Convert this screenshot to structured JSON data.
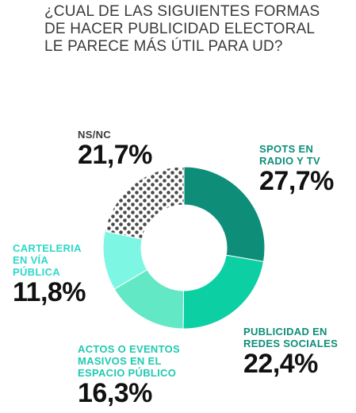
{
  "title_lines": [
    "¿CUAL DE LAS SIGUIENTES FORMAS",
    "DE HACER PUBLICIDAD ELECTORAL",
    "LE PARECE MÁS ÚTIL PARA UD?"
  ],
  "labels": {
    "spots": {
      "lines": [
        "SPOTS EN",
        "RADIO Y TV"
      ],
      "pct": "27,7%"
    },
    "redes": {
      "lines": [
        "PUBLICIDAD EN",
        "REDES SOCIALES"
      ],
      "pct": "22,4%"
    },
    "actos": {
      "lines": [
        "ACTOS O EVENTOS",
        "MASIVOS EN EL",
        "ESPACIO PÚBLICO"
      ],
      "pct": "16,3%"
    },
    "cart": {
      "lines": [
        "CARTELERIA",
        "EN VÍA",
        "PÚBLICA"
      ],
      "pct": "11,8%"
    },
    "nsnc": {
      "lines": [
        "NS/NC"
      ],
      "pct": "21,7%"
    }
  },
  "chart_data": {
    "type": "pie",
    "donut": true,
    "title": "¿CUAL DE LAS SIGUIENTES FORMAS DE HACER PUBLICIDAD ELECTORAL LE PARECE MÁS ÚTIL PARA UD?",
    "categories": [
      "SPOTS EN RADIO Y TV",
      "PUBLICIDAD EN REDES SOCIALES",
      "ACTOS O EVENTOS MASIVOS EN EL ESPACIO PÚBLICO",
      "CARTELERIA EN VÍA PÚBLICA",
      "NS/NC"
    ],
    "values": [
      27.7,
      22.4,
      16.3,
      11.8,
      21.7
    ],
    "colors": [
      "#0e8e79",
      "#0ccfa3",
      "#63e8c5",
      "#7ef6e4",
      "#dcdcdc"
    ],
    "patterns": [
      "solid",
      "solid",
      "solid",
      "solid",
      "dots"
    ],
    "label_colors": {
      "spots": "#0e8e79",
      "redes": "#0e8e79",
      "actos": "#1fc9b0",
      "cart": "#2ed8c8",
      "nsnc": "#3a3a3a"
    }
  }
}
